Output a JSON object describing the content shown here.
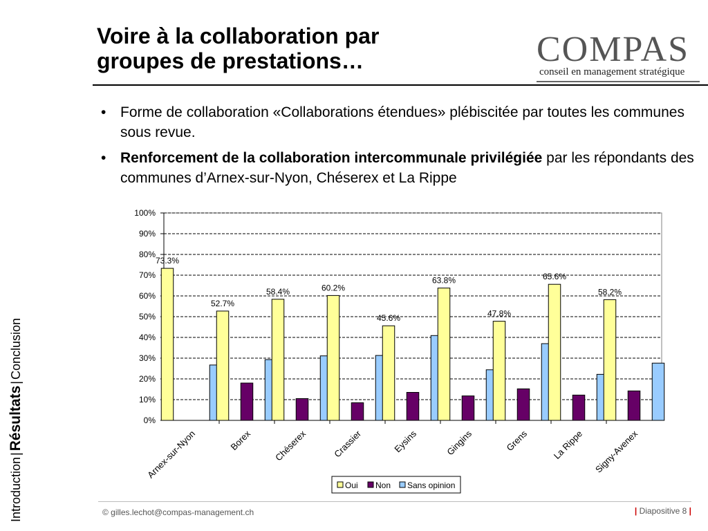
{
  "slide": {
    "title_line1": "Voire à la collaboration par",
    "title_line2": "groupes de prestations…",
    "logo_word": "COMPAS",
    "logo_tagline": "conseil en management stratégique",
    "bullets": [
      {
        "text": "Forme de collaboration «Collaborations étendues» plébiscitée par toutes les communes sous revue."
      },
      {
        "bold": "Renforcement de la collaboration intercommunale privilégiée",
        "rest": " par les répondants des communes d’Arnex-sur-Nyon, Chéserex et La Rippe"
      }
    ],
    "bullet_symbol": "•",
    "sidebar": {
      "intro": "Introduction",
      "results": "Résultats",
      "conclusion": "Conclusion",
      "separator": "|"
    },
    "footer": {
      "email": "© gilles.lechot@compas-management.ch",
      "page_label": "Diapositive 8",
      "bar": "|"
    },
    "colors": {
      "rule": "#000000",
      "footer_accent": "#cc0000"
    }
  },
  "chart_data": {
    "type": "bar",
    "categories": [
      "Arnex-sur-Nyon",
      "Borex",
      "Chéserex",
      "Crassier",
      "Eysins",
      "Gingins",
      "Grens",
      "La Rippe",
      "Signy-Avenex"
    ],
    "series": [
      {
        "name": "Oui",
        "color": "#ffff99",
        "values": [
          73.3,
          52.7,
          58.4,
          60.2,
          45.6,
          63.8,
          47.8,
          65.6,
          58.2
        ]
      },
      {
        "name": "Non",
        "color": "#660066",
        "values": [
          0,
          18,
          10.5,
          8.5,
          13.5,
          11.8,
          15.2,
          12.2,
          14.2
        ]
      },
      {
        "name": "Sans opinion",
        "color": "#99ccff",
        "values": [
          26.7,
          29.3,
          31.1,
          31.3,
          40.9,
          24.4,
          37.0,
          22.2,
          27.6
        ]
      }
    ],
    "data_labels": [
      "73.3%",
      "52.7%",
      "58.4%",
      "60.2%",
      "45.6%",
      "63.8%",
      "47.8%",
      "65.6%",
      "58.2%"
    ],
    "y_ticks": [
      "0%",
      "10%",
      "20%",
      "30%",
      "40%",
      "50%",
      "60%",
      "70%",
      "80%",
      "90%",
      "100%"
    ],
    "ylim": [
      0,
      100
    ],
    "grid": true,
    "legend_position": "bottom"
  }
}
